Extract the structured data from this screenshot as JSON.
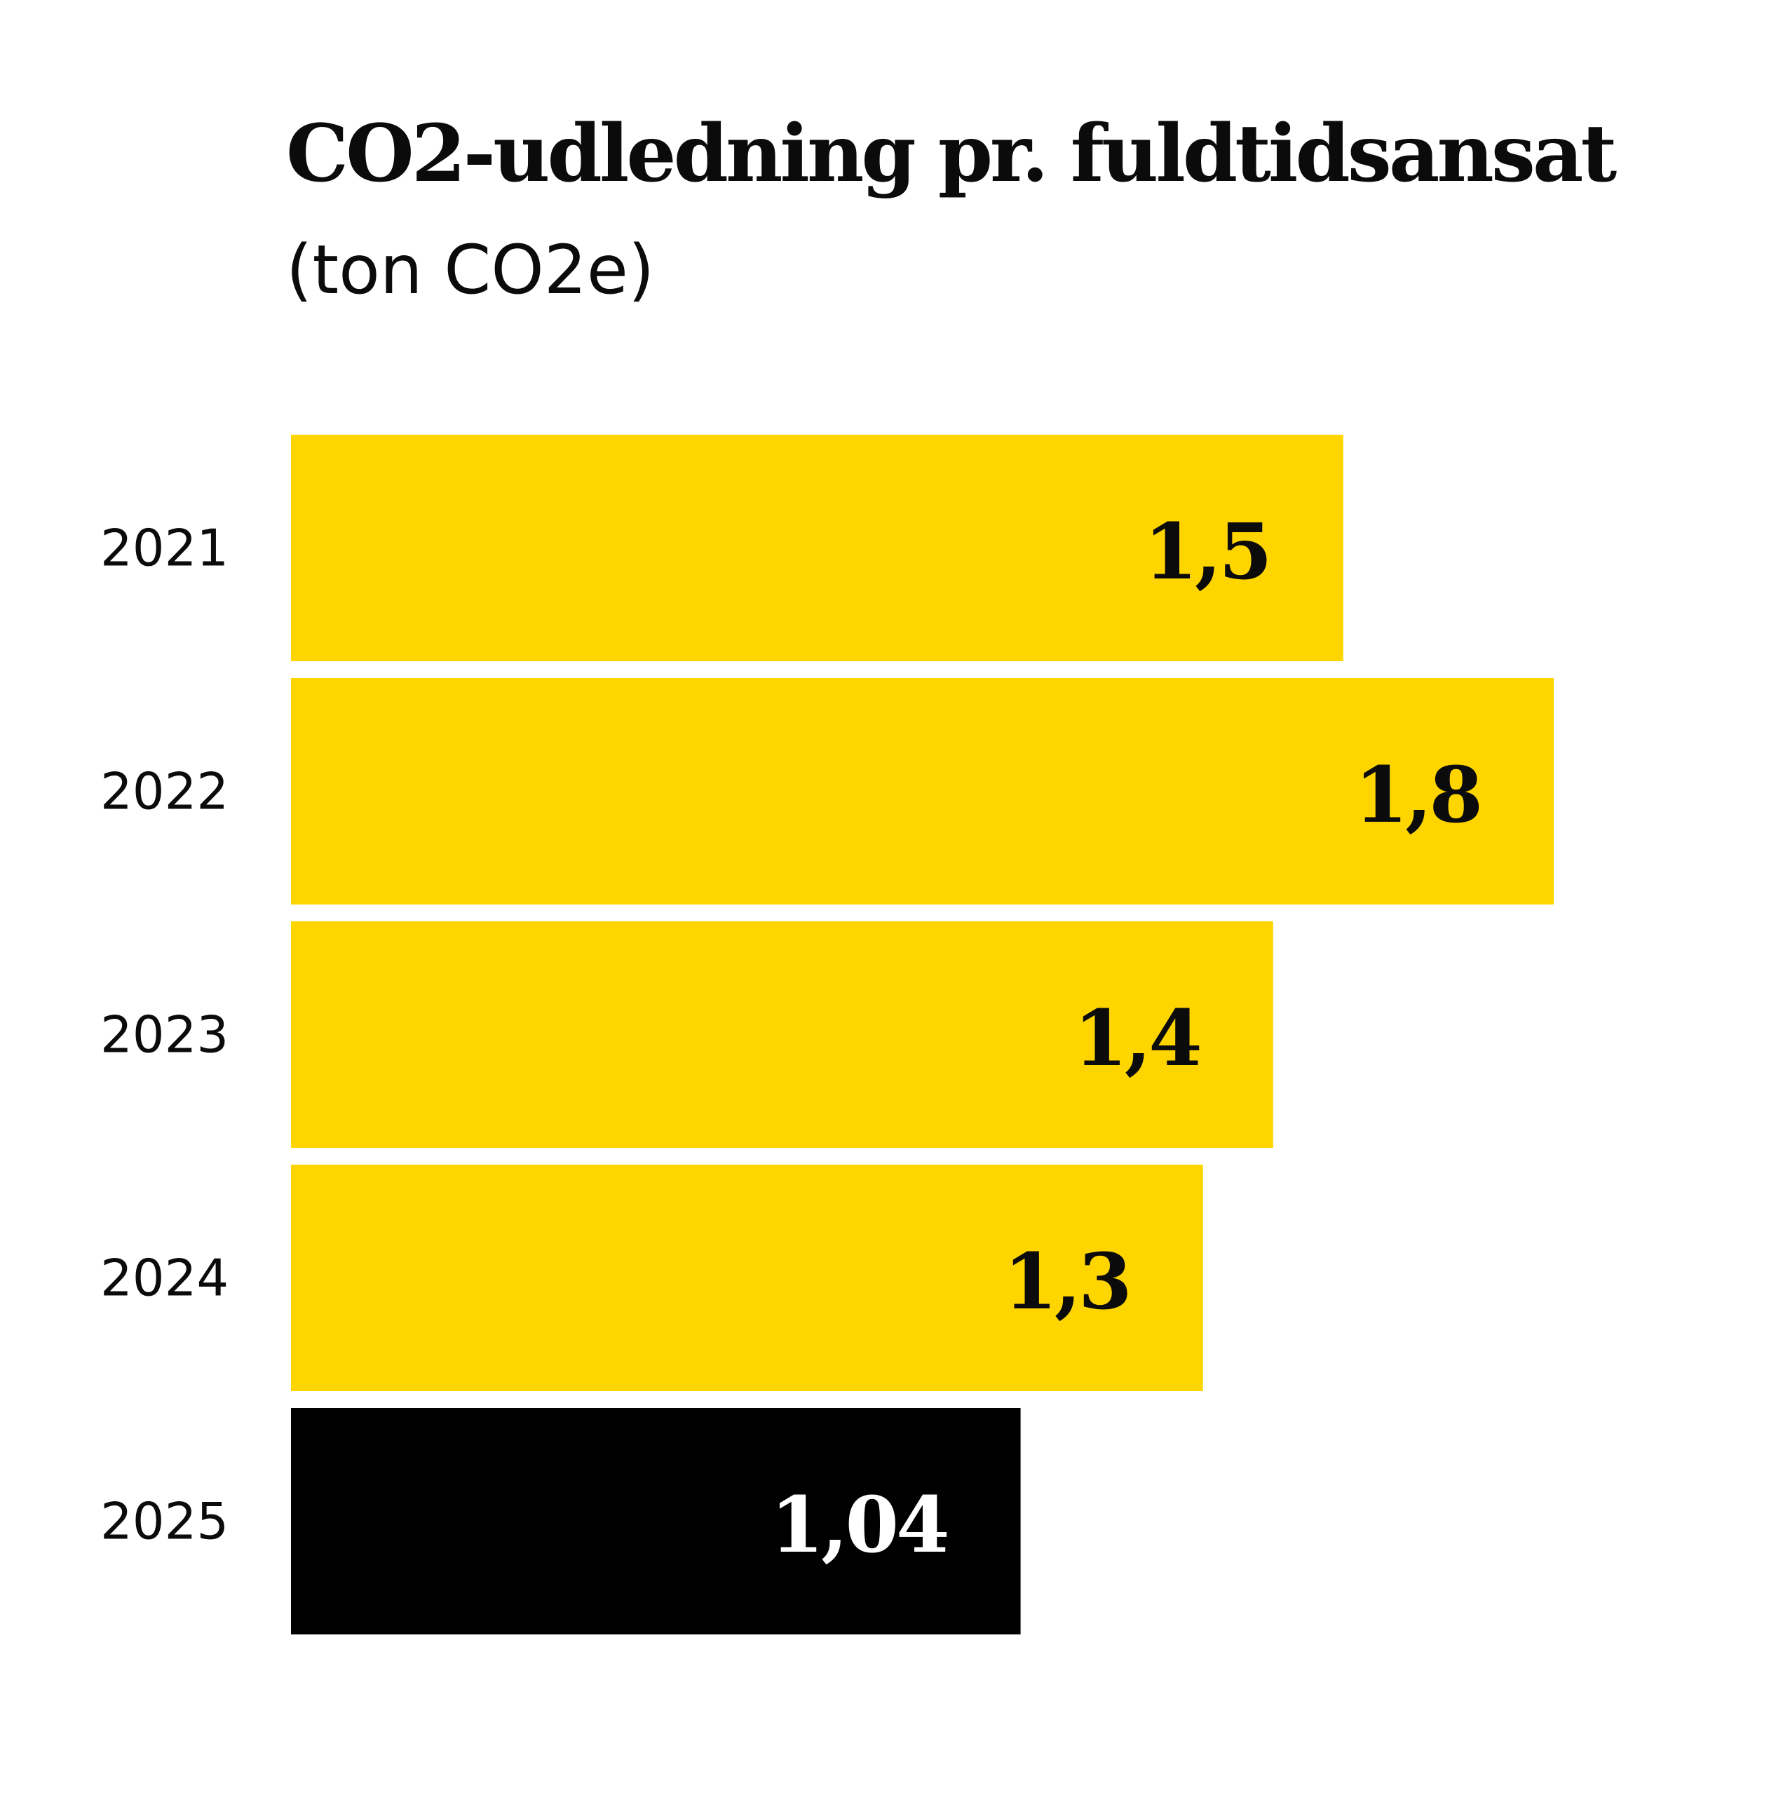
{
  "chart_data": {
    "type": "bar",
    "orientation": "horizontal",
    "title": "CO2-udledning pr. fuldtidsansat",
    "title_unit": "(ton CO2e)",
    "categories": [
      "2021",
      "2022",
      "2023",
      "2024",
      "2025"
    ],
    "values": [
      1.5,
      1.8,
      1.4,
      1.3,
      1.04
    ],
    "value_labels": [
      "1,5",
      "1,8",
      "1,4",
      "1,3",
      "1,04"
    ],
    "bar_colors": [
      "#FFD500",
      "#FFD500",
      "#FFD500",
      "#FFD500",
      "#000000"
    ],
    "value_label_colors": [
      "#0b0b0b",
      "#0b0b0b",
      "#0b0b0b",
      "#0b0b0b",
      "#ffffff"
    ],
    "xlim": [
      0,
      1.8
    ],
    "grid": false,
    "legend": "none"
  }
}
